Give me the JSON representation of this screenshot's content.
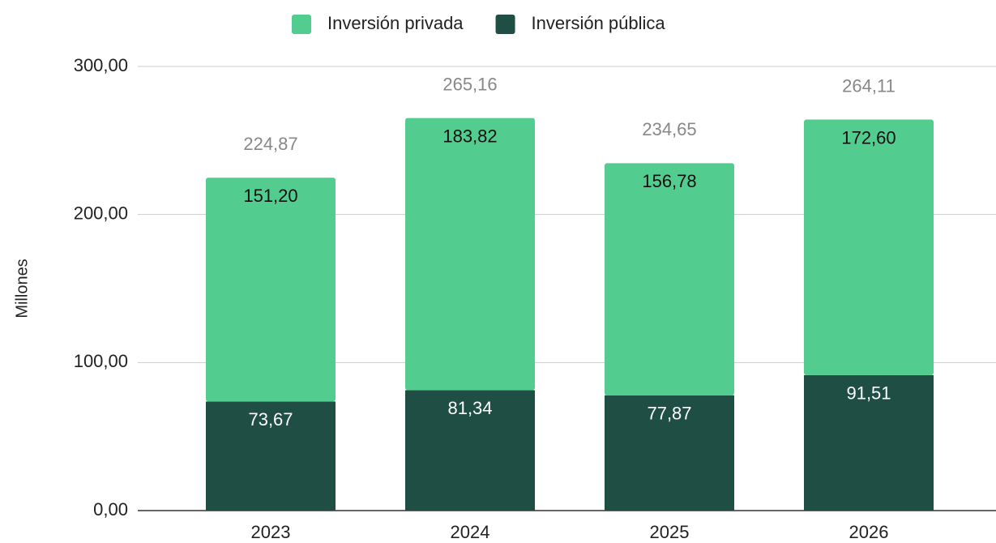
{
  "chart_data": {
    "type": "stacked_bar",
    "y_label": "Millones",
    "categories": [
      "2023",
      "2024",
      "2025",
      "2026"
    ],
    "series": [
      {
        "name": "Inversión privada",
        "color": "#52cc8f",
        "values": [
          151.2,
          183.82,
          156.78,
          172.6
        ],
        "value_labels": [
          "151,20",
          "183,82",
          "156,78",
          "172,60"
        ]
      },
      {
        "name": "Inversión pública",
        "color": "#1f4e45",
        "values": [
          73.67,
          81.34,
          77.87,
          91.51
        ],
        "value_labels": [
          "73,67",
          "81,34",
          "77,87",
          "91,51"
        ]
      }
    ],
    "totals": {
      "values": [
        224.87,
        265.16,
        234.65,
        264.11
      ],
      "value_labels": [
        "224,87",
        "265,16",
        "234,65",
        "264,11"
      ]
    },
    "ylim": [
      0,
      300
    ],
    "yticks": [
      {
        "value": 0,
        "label": "0,00"
      },
      {
        "value": 100,
        "label": "100,00"
      },
      {
        "value": 200,
        "label": "200,00"
      },
      {
        "value": 300,
        "label": "300,00"
      }
    ],
    "grid": true,
    "legend": "top"
  }
}
